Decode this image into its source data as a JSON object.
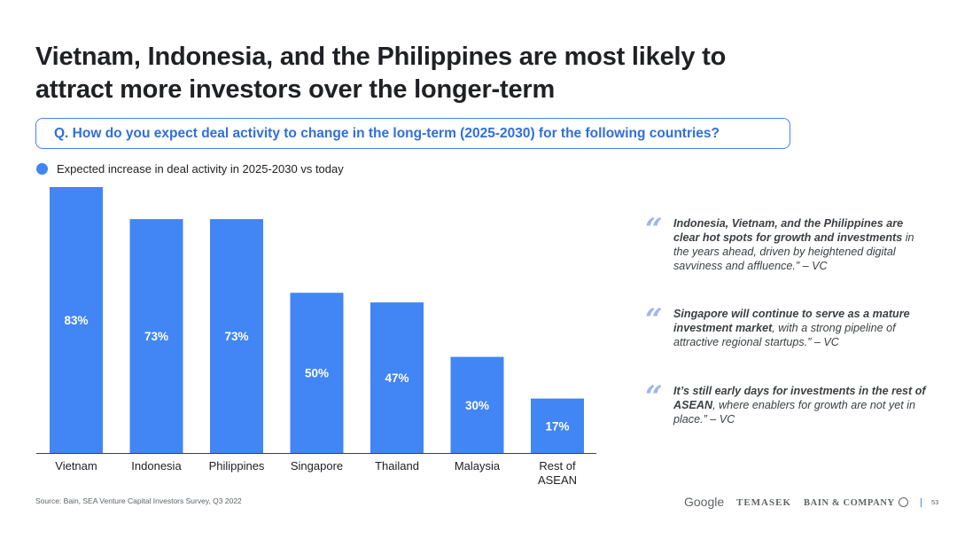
{
  "title": "Vietnam, Indonesia, and the Philippines are most likely to attract more investors over the longer-term",
  "question": "Q. How do you expect deal activity to change in the long-term (2025-2030) for the following countries?",
  "colors": {
    "accent": "#4285f4",
    "question_text": "#2f6fdc",
    "quote_mark": "#9bb7ea"
  },
  "chart_data": {
    "type": "bar",
    "categories": [
      "Vietnam",
      "Indonesia",
      "Philippines",
      "Singapore",
      "Thailand",
      "Malaysia",
      "Rest of ASEAN"
    ],
    "category_lines": [
      [
        "Vietnam"
      ],
      [
        "Indonesia"
      ],
      [
        "Philippines"
      ],
      [
        "Singapore"
      ],
      [
        "Thailand"
      ],
      [
        "Malaysia"
      ],
      [
        "Rest of",
        "ASEAN"
      ]
    ],
    "series": [
      {
        "name": "Expected increase in deal activity in 2025-2030 vs today",
        "values": [
          83,
          73,
          73,
          50,
          47,
          30,
          17
        ],
        "labels": [
          "83%",
          "73%",
          "73%",
          "50%",
          "47%",
          "30%",
          "17%"
        ]
      }
    ],
    "ylim": [
      0,
      83
    ],
    "unit": "%",
    "bar_color": "#4285f4",
    "legend_position": "top-left",
    "grid": false
  },
  "quotes": [
    {
      "bold": "Indonesia, Vietnam, and the Philippines are clear hot spots for growth and investments",
      "rest": " in the years ahead, driven by heightened digital savviness and affluence.” – VC"
    },
    {
      "bold": "Singapore will continue to serve as a mature investment market",
      "rest": ", with a strong pipeline of attractive regional startups.” – VC"
    },
    {
      "bold": "It’s still early days for investments in the rest of ASEAN",
      "rest": ", where enablers for growth are not yet in place.” – VC"
    }
  ],
  "quote_mark": "“",
  "source": "Source: Bain, SEA Venture Capital Investors Survey, Q3 2022",
  "logos": {
    "google": "Google",
    "temasek": "TEMASEK",
    "bain": "BAIN & COMPANY"
  },
  "page_number": "53"
}
